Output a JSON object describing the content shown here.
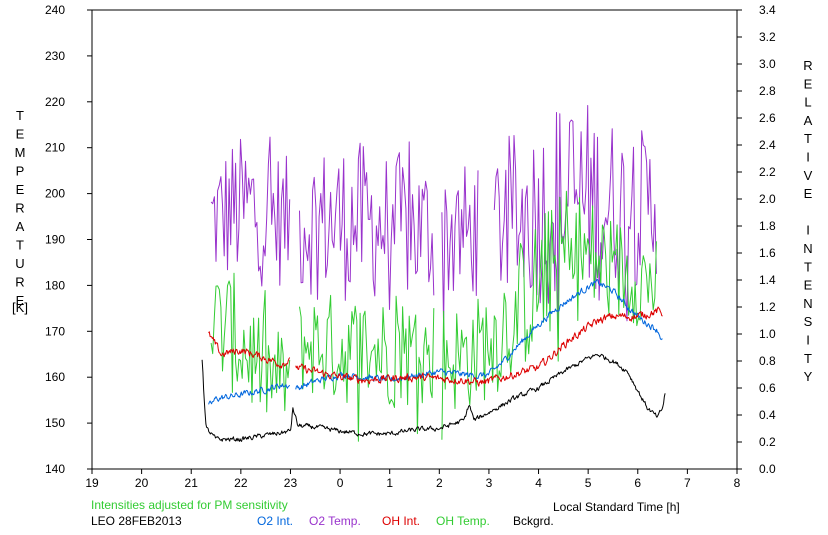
{
  "chart_data": {
    "type": "line",
    "xlabel": "Local Standard Time [h]",
    "ylabel_left": "TEMPERATURE",
    "ylabel_left_unit": "[K]",
    "ylabel_right": "RELATIVE INTENSITY",
    "x_ticks": [
      "19",
      "20",
      "21",
      "22",
      "23",
      "0",
      "1",
      "2",
      "3",
      "4",
      "5",
      "6",
      "7",
      "8"
    ],
    "y_left_ticks": [
      "140",
      "150",
      "160",
      "170",
      "180",
      "190",
      "200",
      "210",
      "220",
      "230",
      "240"
    ],
    "y_right_ticks": [
      "0.0",
      "0.2",
      "0.4",
      "0.6",
      "0.8",
      "1.0",
      "1.2",
      "1.4",
      "1.6",
      "1.8",
      "2.0",
      "2.2",
      "2.4",
      "2.6",
      "2.8",
      "3.0",
      "3.2",
      "3.4"
    ],
    "xlim": [
      19,
      32
    ],
    "ylim_left": [
      140,
      240
    ],
    "ylim_right": [
      0.0,
      3.4
    ],
    "note": "Intensities adjusted for PM sensitivity",
    "station": "LEO 28FEB2013",
    "legend": [
      {
        "label": "O2 Int.",
        "color": "#0066dd"
      },
      {
        "label": "O2 Temp.",
        "color": "#9933cc"
      },
      {
        "label": "OH Int.",
        "color": "#dd0000"
      },
      {
        "label": "OH Temp.",
        "color": "#33cc33"
      },
      {
        "label": "Bckgrd.",
        "color": "#000000"
      }
    ],
    "series": [
      {
        "name": "O2 Temp.",
        "axis": "left",
        "color": "#9933cc",
        "style": "noisy",
        "x": [
          21.4,
          21.8,
          22.2,
          22.6,
          23.0,
          23.2,
          23.6,
          24.0,
          24.4,
          24.8,
          25.2,
          25.6,
          26.0,
          26.4,
          26.8,
          27.2,
          27.6,
          28.0,
          28.4,
          28.8,
          29.2,
          29.6,
          30.0,
          30.4
        ],
        "y": [
          194,
          196,
          197,
          195,
          194,
          194,
          194,
          194,
          194,
          193,
          193,
          192,
          192,
          191,
          192,
          194,
          195,
          196,
          198,
          199,
          198,
          197,
          197,
          198
        ],
        "amp": [
          10,
          12,
          12,
          12,
          10,
          12,
          12,
          13,
          13,
          12,
          12,
          12,
          12,
          12,
          10,
          13,
          14,
          15,
          17,
          17,
          16,
          14,
          13,
          12
        ],
        "gaps": [
          [
            23.0,
            23.15
          ],
          [
            25.92,
            26.05
          ],
          [
            26.8,
            27.1
          ]
        ]
      },
      {
        "name": "OH Temp.",
        "axis": "left",
        "color": "#33cc33",
        "style": "noisy",
        "x": [
          21.4,
          21.8,
          22.2,
          22.6,
          23.0,
          23.2,
          23.6,
          24.0,
          24.4,
          24.8,
          25.2,
          25.6,
          26.0,
          26.4,
          26.8,
          27.2,
          27.6,
          28.0,
          28.4,
          28.8,
          29.2,
          29.6,
          30.0,
          30.4
        ],
        "y": [
          172,
          170,
          165,
          160,
          160,
          167,
          167,
          166,
          166,
          166,
          165,
          165,
          165,
          164,
          166,
          170,
          175,
          180,
          185,
          187,
          185,
          183,
          182,
          180
        ],
        "amp": [
          9,
          10,
          10,
          8,
          8,
          8,
          9,
          9,
          9,
          9,
          9,
          9,
          9,
          9,
          9,
          10,
          11,
          11,
          11,
          11,
          10,
          9,
          8,
          8
        ],
        "gaps": [
          [
            23.0,
            23.15
          ],
          [
            25.92,
            26.05
          ]
        ]
      },
      {
        "name": "O2 Int.",
        "axis": "right",
        "color": "#0066dd",
        "style": "smooth",
        "x": [
          21.35,
          21.5,
          22.0,
          22.5,
          22.8,
          22.95,
          23.15,
          23.5,
          24.0,
          24.5,
          25.0,
          25.5,
          26.0,
          26.5,
          26.8,
          27.0,
          27.3,
          27.6,
          28.0,
          28.4,
          28.8,
          29.0,
          29.2,
          29.5,
          29.8,
          30.1,
          30.4,
          30.5
        ],
        "y": [
          0.46,
          0.52,
          0.55,
          0.59,
          0.62,
          0.62,
          0.6,
          0.65,
          0.7,
          0.68,
          0.66,
          0.69,
          0.72,
          0.7,
          0.69,
          0.7,
          0.8,
          0.92,
          1.07,
          1.2,
          1.3,
          1.35,
          1.38,
          1.32,
          1.2,
          1.1,
          1.03,
          0.95
        ],
        "amp": 0.02,
        "gaps": [
          [
            23.0,
            23.1
          ]
        ]
      },
      {
        "name": "OH Int.",
        "axis": "right",
        "color": "#dd0000",
        "style": "smooth",
        "x": [
          21.35,
          21.6,
          22.0,
          22.5,
          22.8,
          22.95,
          23.15,
          23.5,
          24.0,
          24.5,
          25.0,
          25.5,
          26.0,
          26.5,
          26.8,
          27.0,
          27.5,
          28.0,
          28.3,
          28.6,
          29.0,
          29.2,
          29.5,
          30.0,
          30.4,
          30.5
        ],
        "y": [
          1.0,
          0.85,
          0.88,
          0.82,
          0.78,
          0.8,
          0.75,
          0.72,
          0.68,
          0.66,
          0.67,
          0.68,
          0.67,
          0.66,
          0.64,
          0.65,
          0.7,
          0.75,
          0.85,
          0.95,
          1.05,
          1.1,
          1.13,
          1.13,
          1.17,
          1.15
        ],
        "amp": 0.025,
        "gaps": [
          [
            23.0,
            23.1
          ]
        ]
      },
      {
        "name": "Bckgrd.",
        "axis": "right",
        "color": "#000000",
        "style": "smooth",
        "x": [
          21.22,
          21.25,
          21.3,
          21.5,
          22.0,
          22.5,
          23.0,
          23.05,
          23.15,
          23.5,
          24.0,
          24.5,
          25.0,
          25.5,
          26.0,
          26.5,
          26.6,
          26.7,
          27.0,
          27.5,
          28.0,
          28.5,
          29.0,
          29.2,
          29.5,
          29.8,
          30.0,
          30.2,
          30.4,
          30.5,
          30.55
        ],
        "y": [
          0.82,
          0.6,
          0.3,
          0.22,
          0.22,
          0.25,
          0.28,
          0.45,
          0.32,
          0.31,
          0.28,
          0.26,
          0.26,
          0.29,
          0.3,
          0.36,
          0.48,
          0.36,
          0.42,
          0.52,
          0.6,
          0.72,
          0.82,
          0.85,
          0.8,
          0.72,
          0.58,
          0.45,
          0.38,
          0.45,
          0.56
        ],
        "amp": 0.015,
        "gaps": []
      }
    ]
  }
}
